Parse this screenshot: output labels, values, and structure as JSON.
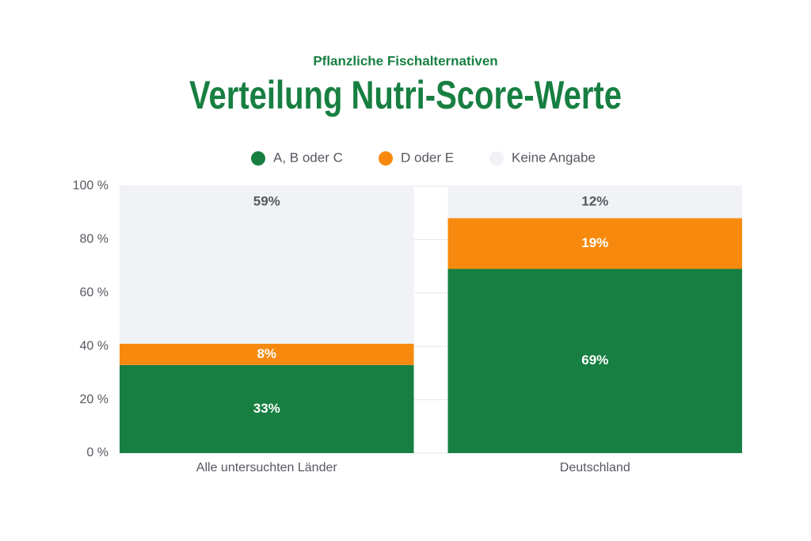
{
  "chart_data": {
    "type": "stacked-bar",
    "subtitle": "Pflanzliche Fischalternativen",
    "title": "Verteilung Nutri-Score-Werte",
    "categories": [
      "Alle untersuchten Länder",
      "Deutschland"
    ],
    "series": [
      {
        "name": "A, B oder C",
        "color": "#177f41",
        "values": [
          33,
          69
        ],
        "value_labels": [
          "33%",
          "69%"
        ]
      },
      {
        "name": "D oder E",
        "color": "#f78a0e",
        "values": [
          8,
          19
        ],
        "value_labels": [
          "8%",
          "19%"
        ]
      },
      {
        "name": "Keine Angabe",
        "color": "#f1f2f6",
        "values": [
          59,
          12
        ],
        "value_labels": [
          "59%",
          "12%"
        ]
      }
    ],
    "ylim": [
      0,
      100
    ],
    "yticks": [
      {
        "value": 0,
        "label": "0 %"
      },
      {
        "value": 20,
        "label": "20 %"
      },
      {
        "value": 40,
        "label": "40 %"
      },
      {
        "value": 60,
        "label": "60 %"
      },
      {
        "value": 80,
        "label": "80 %"
      },
      {
        "value": 100,
        "label": "100 %"
      }
    ],
    "grid": true,
    "legend": "top"
  }
}
